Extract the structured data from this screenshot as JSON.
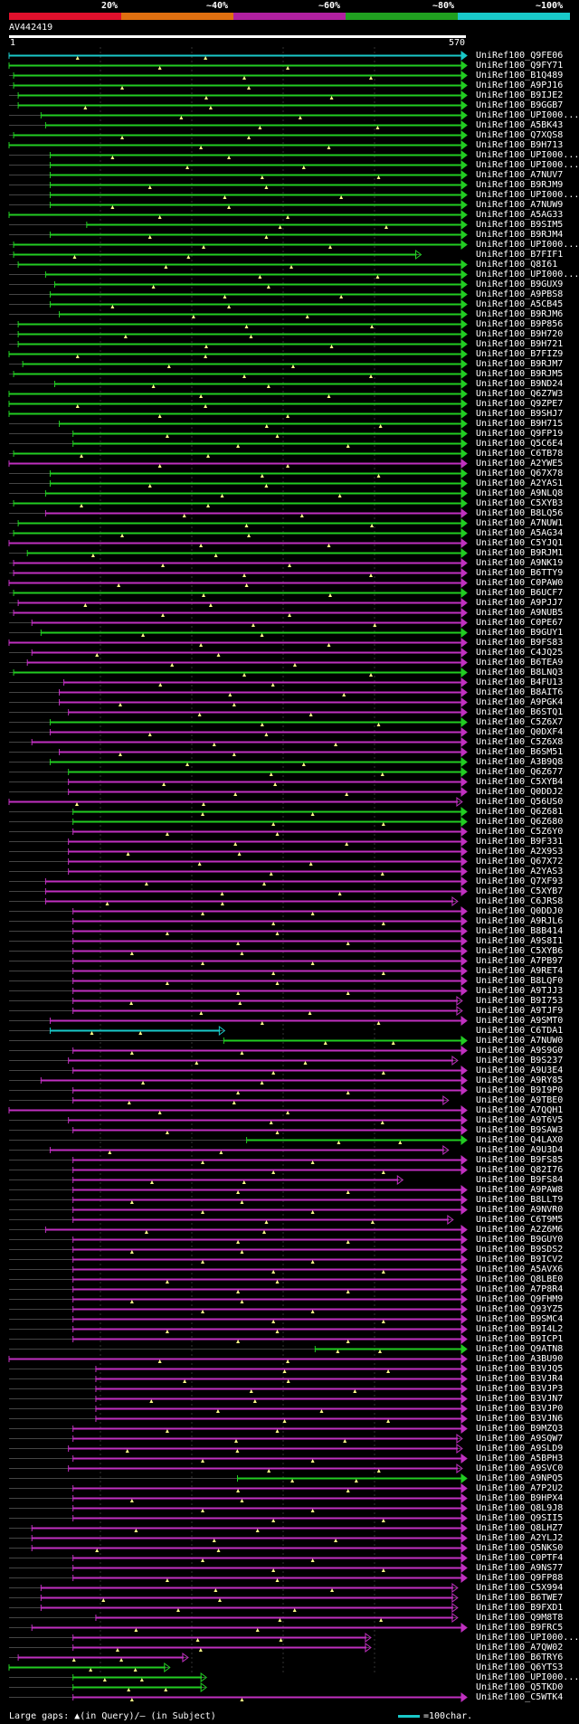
{
  "scale": {
    "labels": [
      "20%",
      "~40%",
      "~60%",
      "~80%",
      "~100%"
    ],
    "colors": [
      "#e0102c",
      "#e07010",
      "#b020a0",
      "#20a020",
      "#19c9c9"
    ]
  },
  "query": {
    "id": "AV442419",
    "start": "1",
    "end": "570"
  },
  "footer": {
    "gaps_text": "Large gaps: ▲(in Query)/– (in Subject)",
    "legend_text": "=100char."
  },
  "palette": {
    "green": "#22cc22",
    "magenta": "#c030c0",
    "cyan": "#19c9c9",
    "tick": "#ffff88"
  },
  "hits": [
    {
      "name": "UniRef100_Q9FE06",
      "c": "cyan",
      "s": 0,
      "e": 1,
      "a": 1
    },
    {
      "name": "UniRef100_Q9FY71",
      "c": "green",
      "s": 0,
      "e": 1,
      "a": 1
    },
    {
      "name": "UniRef100_B1Q489",
      "c": "green",
      "s": 0.01,
      "e": 1,
      "a": 1
    },
    {
      "name": "UniRef100_A9PJ16",
      "c": "green",
      "s": 0.01,
      "e": 1,
      "a": 1
    },
    {
      "name": "UniRef100_B9IJE2",
      "c": "green",
      "s": 0.02,
      "e": 1,
      "a": 1
    },
    {
      "name": "UniRef100_B9GGB7",
      "c": "green",
      "s": 0.02,
      "e": 1,
      "a": 1
    },
    {
      "name": "UniRef100_UPI000...",
      "c": "green",
      "s": 0.07,
      "e": 1,
      "a": 1
    },
    {
      "name": "UniRef100_A5BK43",
      "c": "green",
      "s": 0.08,
      "e": 1,
      "a": 1
    },
    {
      "name": "UniRef100_Q7XQS8",
      "c": "green",
      "s": 0.01,
      "e": 1,
      "a": 1
    },
    {
      "name": "UniRef100_B9H713",
      "c": "green",
      "s": 0,
      "e": 1,
      "a": 1
    },
    {
      "name": "UniRef100_UPI000...",
      "c": "green",
      "s": 0.09,
      "e": 1,
      "a": 1
    },
    {
      "name": "UniRef100_UPI000...",
      "c": "green",
      "s": 0.09,
      "e": 1,
      "a": 1
    },
    {
      "name": "UniRef100_A7NUV7",
      "c": "green",
      "s": 0.09,
      "e": 1,
      "a": 1
    },
    {
      "name": "UniRef100_B9RJM9",
      "c": "green",
      "s": 0.09,
      "e": 1,
      "a": 1
    },
    {
      "name": "UniRef100_UPI000...",
      "c": "green",
      "s": 0.09,
      "e": 1,
      "a": 1
    },
    {
      "name": "UniRef100_A7NUW9",
      "c": "green",
      "s": 0.09,
      "e": 1,
      "a": 1
    },
    {
      "name": "UniRef100_A5AG33",
      "c": "green",
      "s": 0,
      "e": 1,
      "a": 1
    },
    {
      "name": "UniRef100_B9SIM5",
      "c": "green",
      "s": 0.17,
      "e": 1,
      "a": 1
    },
    {
      "name": "UniRef100_B9RJM4",
      "c": "green",
      "s": 0.09,
      "e": 1,
      "a": 1
    },
    {
      "name": "UniRef100_UPI000...",
      "c": "green",
      "s": 0.01,
      "e": 1,
      "a": 1
    },
    {
      "name": "UniRef100_B7FIF1",
      "c": "green",
      "s": 0.01,
      "e": 0.9,
      "a": 2
    },
    {
      "name": "UniRef100_Q8I61",
      "c": "green",
      "s": 0.02,
      "e": 1,
      "a": 1
    },
    {
      "name": "UniRef100_UPI000...",
      "c": "green",
      "s": 0.08,
      "e": 1,
      "a": 1
    },
    {
      "name": "UniRef100_B9GUX9",
      "c": "green",
      "s": 0.1,
      "e": 1,
      "a": 1
    },
    {
      "name": "UniRef100_A9PBS8",
      "c": "green",
      "s": 0.09,
      "e": 1,
      "a": 1
    },
    {
      "name": "UniRef100_A5CB45",
      "c": "green",
      "s": 0.09,
      "e": 1,
      "a": 1
    },
    {
      "name": "UniRef100_B9RJM6",
      "c": "green",
      "s": 0.11,
      "e": 1,
      "a": 1
    },
    {
      "name": "UniRef100_B9P856",
      "c": "green",
      "s": 0.02,
      "e": 1,
      "a": 1
    },
    {
      "name": "UniRef100_B9H720",
      "c": "green",
      "s": 0.02,
      "e": 1,
      "a": 1
    },
    {
      "name": "UniRef100_B9H721",
      "c": "green",
      "s": 0.02,
      "e": 1,
      "a": 1
    },
    {
      "name": "UniRef100_B7FIZ9",
      "c": "green",
      "s": 0,
      "e": 1,
      "a": 1
    },
    {
      "name": "UniRef100_B9RJM7",
      "c": "green",
      "s": 0.03,
      "e": 1,
      "a": 1
    },
    {
      "name": "UniRef100_B9RJM5",
      "c": "green",
      "s": 0.01,
      "e": 1,
      "a": 1
    },
    {
      "name": "UniRef100_B9ND24",
      "c": "green",
      "s": 0.1,
      "e": 1,
      "a": 1
    },
    {
      "name": "UniRef100_Q6Z7W3",
      "c": "green",
      "s": 0,
      "e": 1,
      "a": 1
    },
    {
      "name": "UniRef100_Q9ZPE7",
      "c": "green",
      "s": 0,
      "e": 1,
      "a": 1
    },
    {
      "name": "UniRef100_B9SHJ7",
      "c": "green",
      "s": 0,
      "e": 1,
      "a": 1
    },
    {
      "name": "UniRef100_B9H715",
      "c": "green",
      "s": 0.11,
      "e": 1,
      "a": 1
    },
    {
      "name": "UniRef100_Q9FP19",
      "c": "green",
      "s": 0.14,
      "e": 1,
      "a": 1
    },
    {
      "name": "UniRef100_Q5C6E4",
      "c": "green",
      "s": 0.14,
      "e": 1,
      "a": 1
    },
    {
      "name": "UniRef100_C6TB78",
      "c": "green",
      "s": 0.01,
      "e": 1,
      "a": 1
    },
    {
      "name": "UniRef100_A2YWE5",
      "c": "magenta",
      "s": 0,
      "e": 1,
      "a": 1
    },
    {
      "name": "UniRef100_Q67X78",
      "c": "green",
      "s": 0.09,
      "e": 1,
      "a": 1
    },
    {
      "name": "UniRef100_A2YAS1",
      "c": "green",
      "s": 0.09,
      "e": 1,
      "a": 1
    },
    {
      "name": "UniRef100_A9NLQ8",
      "c": "green",
      "s": 0.08,
      "e": 1,
      "a": 1
    },
    {
      "name": "UniRef100_C5XYB3",
      "c": "green",
      "s": 0.01,
      "e": 1,
      "a": 1
    },
    {
      "name": "UniRef100_B8LQ56",
      "c": "magenta",
      "s": 0.08,
      "e": 1,
      "a": 1
    },
    {
      "name": "UniRef100_A7NUW1",
      "c": "green",
      "s": 0.02,
      "e": 1,
      "a": 1
    },
    {
      "name": "UniRef100_A5AG34",
      "c": "green",
      "s": 0.01,
      "e": 1,
      "a": 1
    },
    {
      "name": "UniRef100_C5YJQ1",
      "c": "magenta",
      "s": 0,
      "e": 1,
      "a": 1
    },
    {
      "name": "UniRef100_B9RJM1",
      "c": "green",
      "s": 0.04,
      "e": 1,
      "a": 1
    },
    {
      "name": "UniRef100_A9NK19",
      "c": "magenta",
      "s": 0.01,
      "e": 1,
      "a": 1
    },
    {
      "name": "UniRef100_B6TTY9",
      "c": "magenta",
      "s": 0.01,
      "e": 1,
      "a": 1
    },
    {
      "name": "UniRef100_C0PAW0",
      "c": "magenta",
      "s": 0,
      "e": 1,
      "a": 1
    },
    {
      "name": "UniRef100_B6UCF7",
      "c": "green",
      "s": 0.01,
      "e": 1,
      "a": 1
    },
    {
      "name": "UniRef100_A9PJJ7",
      "c": "magenta",
      "s": 0.02,
      "e": 1,
      "a": 1
    },
    {
      "name": "UniRef100_A9NUB5",
      "c": "magenta",
      "s": 0.01,
      "e": 1,
      "a": 1
    },
    {
      "name": "UniRef100_C0PE67",
      "c": "magenta",
      "s": 0.05,
      "e": 1,
      "a": 1
    },
    {
      "name": "UniRef100_B9GUY1",
      "c": "green",
      "s": 0.07,
      "e": 1,
      "a": 1
    },
    {
      "name": "UniRef100_B9FS83",
      "c": "magenta",
      "s": 0,
      "e": 1,
      "a": 1
    },
    {
      "name": "UniRef100_C4JQ25",
      "c": "magenta",
      "s": 0.05,
      "e": 1,
      "a": 1
    },
    {
      "name": "UniRef100_B6TEA9",
      "c": "magenta",
      "s": 0.04,
      "e": 1,
      "a": 1
    },
    {
      "name": "UniRef100_B8LNQ3",
      "c": "green",
      "s": 0.01,
      "e": 1,
      "a": 1
    },
    {
      "name": "UniRef100_B4FU13",
      "c": "magenta",
      "s": 0.12,
      "e": 1,
      "a": 1
    },
    {
      "name": "UniRef100_B8AIT6",
      "c": "magenta",
      "s": 0.11,
      "e": 1,
      "a": 1
    },
    {
      "name": "UniRef100_A9PGK4",
      "c": "magenta",
      "s": 0.11,
      "e": 1,
      "a": 1
    },
    {
      "name": "UniRef100_B6STQ1",
      "c": "magenta",
      "s": 0.13,
      "e": 1,
      "a": 1
    },
    {
      "name": "UniRef100_C5Z6X7",
      "c": "green",
      "s": 0.09,
      "e": 1,
      "a": 1
    },
    {
      "name": "UniRef100_Q0DXF4",
      "c": "magenta",
      "s": 0.09,
      "e": 1,
      "a": 1
    },
    {
      "name": "UniRef100_C5Z6X8",
      "c": "magenta",
      "s": 0.05,
      "e": 1,
      "a": 1
    },
    {
      "name": "UniRef100_B6SM51",
      "c": "magenta",
      "s": 0.11,
      "e": 1,
      "a": 1
    },
    {
      "name": "UniRef100_A3B9Q8",
      "c": "green",
      "s": 0.09,
      "e": 1,
      "a": 1
    },
    {
      "name": "UniRef100_Q6Z677",
      "c": "green",
      "s": 0.13,
      "e": 1,
      "a": 1
    },
    {
      "name": "UniRef100_C5XYB4",
      "c": "magenta",
      "s": 0.13,
      "e": 1,
      "a": 1
    },
    {
      "name": "UniRef100_Q0DDJ2",
      "c": "magenta",
      "s": 0.13,
      "e": 1,
      "a": 1
    },
    {
      "name": "UniRef100_Q56US0",
      "c": "magenta",
      "s": 0,
      "e": 0.99,
      "a": 2
    },
    {
      "name": "UniRef100_Q6Z681",
      "c": "green",
      "s": 0.14,
      "e": 1,
      "a": 1
    },
    {
      "name": "UniRef100_Q6Z680",
      "c": "green",
      "s": 0.14,
      "e": 1,
      "a": 1
    },
    {
      "name": "UniRef100_C5Z6Y0",
      "c": "magenta",
      "s": 0.14,
      "e": 1,
      "a": 1
    },
    {
      "name": "UniRef100_B9F331",
      "c": "magenta",
      "s": 0.13,
      "e": 1,
      "a": 1
    },
    {
      "name": "UniRef100_A2X9S3",
      "c": "magenta",
      "s": 0.13,
      "e": 1,
      "a": 1
    },
    {
      "name": "UniRef100_Q67X72",
      "c": "magenta",
      "s": 0.13,
      "e": 1,
      "a": 1
    },
    {
      "name": "UniRef100_A2YAS3",
      "c": "magenta",
      "s": 0.13,
      "e": 1,
      "a": 1
    },
    {
      "name": "UniRef100_Q7XF93",
      "c": "magenta",
      "s": 0.08,
      "e": 1,
      "a": 1
    },
    {
      "name": "UniRef100_C5XYB7",
      "c": "magenta",
      "s": 0.08,
      "e": 1,
      "a": 1
    },
    {
      "name": "UniRef100_C6JRS8",
      "c": "magenta",
      "s": 0.08,
      "e": 0.98,
      "a": 2
    },
    {
      "name": "UniRef100_Q0DDJ0",
      "c": "magenta",
      "s": 0.14,
      "e": 1,
      "a": 1
    },
    {
      "name": "UniRef100_A9RJL6",
      "c": "magenta",
      "s": 0.14,
      "e": 1,
      "a": 1
    },
    {
      "name": "UniRef100_B8B414",
      "c": "magenta",
      "s": 0.14,
      "e": 1,
      "a": 1
    },
    {
      "name": "UniRef100_A9S8I1",
      "c": "magenta",
      "s": 0.14,
      "e": 1,
      "a": 1
    },
    {
      "name": "UniRef100_C5XYB6",
      "c": "magenta",
      "s": 0.14,
      "e": 1,
      "a": 1
    },
    {
      "name": "UniRef100_A7PB97",
      "c": "magenta",
      "s": 0.14,
      "e": 1,
      "a": 1
    },
    {
      "name": "UniRef100_A9RET4",
      "c": "magenta",
      "s": 0.14,
      "e": 1,
      "a": 1
    },
    {
      "name": "UniRef100_B8LQF0",
      "c": "magenta",
      "s": 0.14,
      "e": 1,
      "a": 1
    },
    {
      "name": "UniRef100_A9TJJ3",
      "c": "magenta",
      "s": 0.14,
      "e": 1,
      "a": 1
    },
    {
      "name": "UniRef100_B9I753",
      "c": "magenta",
      "s": 0.14,
      "e": 0.99,
      "a": 2
    },
    {
      "name": "UniRef100_A9TJF9",
      "c": "magenta",
      "s": 0.14,
      "e": 0.99,
      "a": 2
    },
    {
      "name": "UniRef100_A9SMT0",
      "c": "magenta",
      "s": 0.09,
      "e": 1,
      "a": 1
    },
    {
      "name": "UniRef100_C6TDA1",
      "c": "cyan",
      "s": 0.09,
      "e": 0.47,
      "a": 2
    },
    {
      "name": "UniRef100_A7NUW0",
      "c": "green",
      "s": 0.47,
      "e": 1,
      "a": 1
    },
    {
      "name": "UniRef100_A9S9G0",
      "c": "magenta",
      "s": 0.14,
      "e": 1,
      "a": 1
    },
    {
      "name": "UniRef100_B9S237",
      "c": "magenta",
      "s": 0.13,
      "e": 0.98,
      "a": 2
    },
    {
      "name": "UniRef100_A9U3E4",
      "c": "magenta",
      "s": 0.14,
      "e": 1,
      "a": 1
    },
    {
      "name": "UniRef100_A9RY85",
      "c": "magenta",
      "s": 0.07,
      "e": 1,
      "a": 1
    },
    {
      "name": "UniRef100_B9I9P0",
      "c": "magenta",
      "s": 0.14,
      "e": 1,
      "a": 1
    },
    {
      "name": "UniRef100_A9TBE0",
      "c": "magenta",
      "s": 0.14,
      "e": 0.96,
      "a": 2
    },
    {
      "name": "UniRef100_A7QQH1",
      "c": "magenta",
      "s": 0,
      "e": 1,
      "a": 1
    },
    {
      "name": "UniRef100_A9T6V5",
      "c": "magenta",
      "s": 0.13,
      "e": 1,
      "a": 1
    },
    {
      "name": "UniRef100_B9SAW3",
      "c": "magenta",
      "s": 0.14,
      "e": 1,
      "a": 1
    },
    {
      "name": "UniRef100_Q4LAX0",
      "c": "green",
      "s": 0.52,
      "e": 1,
      "a": 1
    },
    {
      "name": "UniRef100_A9U3D4",
      "c": "magenta",
      "s": 0.09,
      "e": 0.96,
      "a": 2
    },
    {
      "name": "UniRef100_B9FS85",
      "c": "magenta",
      "s": 0.14,
      "e": 1,
      "a": 1
    },
    {
      "name": "UniRef100_Q82I76",
      "c": "magenta",
      "s": 0.14,
      "e": 1,
      "a": 1
    },
    {
      "name": "UniRef100_B9FS84",
      "c": "magenta",
      "s": 0.14,
      "e": 0.86,
      "a": 2
    },
    {
      "name": "UniRef100_A9PAW8",
      "c": "magenta",
      "s": 0.14,
      "e": 1,
      "a": 1
    },
    {
      "name": "UniRef100_B8LLT9",
      "c": "magenta",
      "s": 0.14,
      "e": 1,
      "a": 1
    },
    {
      "name": "UniRef100_A9NVR0",
      "c": "magenta",
      "s": 0.14,
      "e": 1,
      "a": 1
    },
    {
      "name": "UniRef100_C6T9M5",
      "c": "magenta",
      "s": 0.14,
      "e": 0.97,
      "a": 2
    },
    {
      "name": "UniRef100_A2Z6M6",
      "c": "magenta",
      "s": 0.08,
      "e": 1,
      "a": 1
    },
    {
      "name": "UniRef100_B9GUY0",
      "c": "magenta",
      "s": 0.14,
      "e": 1,
      "a": 1
    },
    {
      "name": "UniRef100_B9SDS2",
      "c": "magenta",
      "s": 0.14,
      "e": 1,
      "a": 1
    },
    {
      "name": "UniRef100_B9ICV2",
      "c": "magenta",
      "s": 0.14,
      "e": 1,
      "a": 1
    },
    {
      "name": "UniRef100_A5AVX6",
      "c": "magenta",
      "s": 0.14,
      "e": 1,
      "a": 1
    },
    {
      "name": "UniRef100_Q8LBE0",
      "c": "magenta",
      "s": 0.14,
      "e": 1,
      "a": 1
    },
    {
      "name": "UniRef100_A7P8R4",
      "c": "magenta",
      "s": 0.14,
      "e": 1,
      "a": 1
    },
    {
      "name": "UniRef100_Q9FHM9",
      "c": "magenta",
      "s": 0.14,
      "e": 1,
      "a": 1
    },
    {
      "name": "UniRef100_Q93YZ5",
      "c": "magenta",
      "s": 0.14,
      "e": 1,
      "a": 1
    },
    {
      "name": "UniRef100_B9SMC4",
      "c": "magenta",
      "s": 0.14,
      "e": 1,
      "a": 1
    },
    {
      "name": "UniRef100_B9I4L2",
      "c": "magenta",
      "s": 0.14,
      "e": 1,
      "a": 1
    },
    {
      "name": "UniRef100_B9ICP1",
      "c": "magenta",
      "s": 0.14,
      "e": 1,
      "a": 1
    },
    {
      "name": "UniRef100_Q9ATN8",
      "c": "green",
      "s": 0.67,
      "e": 1,
      "a": 1
    },
    {
      "name": "UniRef100_A3BU90",
      "c": "magenta",
      "s": 0,
      "e": 1,
      "a": 1
    },
    {
      "name": "UniRef100_B3VJQ5",
      "c": "magenta",
      "s": 0.19,
      "e": 1,
      "a": 1
    },
    {
      "name": "UniRef100_B3VJR4",
      "c": "magenta",
      "s": 0.19,
      "e": 1,
      "a": 1
    },
    {
      "name": "UniRef100_B3VJP3",
      "c": "magenta",
      "s": 0.19,
      "e": 1,
      "a": 1
    },
    {
      "name": "UniRef100_B3VJN7",
      "c": "magenta",
      "s": 0.19,
      "e": 1,
      "a": 1
    },
    {
      "name": "UniRef100_B3VJP0",
      "c": "magenta",
      "s": 0.19,
      "e": 1,
      "a": 1
    },
    {
      "name": "UniRef100_B3VJN6",
      "c": "magenta",
      "s": 0.19,
      "e": 1,
      "a": 1
    },
    {
      "name": "UniRef100_B9MZQ3",
      "c": "magenta",
      "s": 0.14,
      "e": 1,
      "a": 1
    },
    {
      "name": "UniRef100_A9SQW7",
      "c": "magenta",
      "s": 0.14,
      "e": 0.99,
      "a": 2
    },
    {
      "name": "UniRef100_A9SLD9",
      "c": "magenta",
      "s": 0.13,
      "e": 0.99,
      "a": 2
    },
    {
      "name": "UniRef100_A5BPH3",
      "c": "magenta",
      "s": 0.14,
      "e": 1,
      "a": 1
    },
    {
      "name": "UniRef100_A9SVC0",
      "c": "magenta",
      "s": 0.13,
      "e": 0.99,
      "a": 2
    },
    {
      "name": "UniRef100_A9NPQ5",
      "c": "green",
      "s": 0.5,
      "e": 1,
      "a": 1
    },
    {
      "name": "UniRef100_A7P2U2",
      "c": "magenta",
      "s": 0.14,
      "e": 1,
      "a": 1
    },
    {
      "name": "UniRef100_B9HPX4",
      "c": "magenta",
      "s": 0.14,
      "e": 1,
      "a": 1
    },
    {
      "name": "UniRef100_Q8L9J8",
      "c": "magenta",
      "s": 0.14,
      "e": 1,
      "a": 1
    },
    {
      "name": "UniRef100_Q9SII5",
      "c": "magenta",
      "s": 0.14,
      "e": 1,
      "a": 1
    },
    {
      "name": "UniRef100_Q8LHZ7",
      "c": "magenta",
      "s": 0.05,
      "e": 1,
      "a": 1
    },
    {
      "name": "UniRef100_A2YLJ2",
      "c": "magenta",
      "s": 0.05,
      "e": 1,
      "a": 1
    },
    {
      "name": "UniRef100_Q5NKS0",
      "c": "magenta",
      "s": 0.05,
      "e": 1,
      "a": 1
    },
    {
      "name": "UniRef100_C0PTF4",
      "c": "magenta",
      "s": 0.14,
      "e": 1,
      "a": 1
    },
    {
      "name": "UniRef100_A9NS77",
      "c": "magenta",
      "s": 0.14,
      "e": 1,
      "a": 1
    },
    {
      "name": "UniRef100_Q9FP88",
      "c": "magenta",
      "s": 0.14,
      "e": 1,
      "a": 1
    },
    {
      "name": "UniRef100_C5X994",
      "c": "magenta",
      "s": 0.07,
      "e": 0.98,
      "a": 2
    },
    {
      "name": "UniRef100_B6TWE7",
      "c": "magenta",
      "s": 0.07,
      "e": 0.98,
      "a": 2
    },
    {
      "name": "UniRef100_B9FXD1",
      "c": "magenta",
      "s": 0.07,
      "e": 0.98,
      "a": 2
    },
    {
      "name": "UniRef100_Q9M8T8",
      "c": "magenta",
      "s": 0.19,
      "e": 0.98,
      "a": 2
    },
    {
      "name": "UniRef100_B9FRC5",
      "c": "magenta",
      "s": 0.05,
      "e": 1,
      "a": 1
    },
    {
      "name": "UniRef100_UPI000...",
      "c": "magenta",
      "s": 0.14,
      "e": 0.79,
      "a": 2
    },
    {
      "name": "UniRef100_A7QW02",
      "c": "magenta",
      "s": 0.14,
      "e": 0.79,
      "a": 2
    },
    {
      "name": "UniRef100_B6TRY6",
      "c": "magenta",
      "s": 0.02,
      "e": 0.39,
      "a": 2
    },
    {
      "name": "UniRef100_Q6YTS3",
      "c": "green",
      "s": 0,
      "e": 0.35,
      "a": 2
    },
    {
      "name": "UniRef100_UPI000...",
      "c": "green",
      "s": 0.14,
      "e": 0.43,
      "a": 2
    },
    {
      "name": "UniRef100_Q5TKD0",
      "c": "green",
      "s": 0.14,
      "e": 0.43,
      "a": 2
    },
    {
      "name": "UniRef100_C5WTK4",
      "c": "magenta",
      "s": 0.14,
      "e": 1,
      "a": 1
    }
  ]
}
